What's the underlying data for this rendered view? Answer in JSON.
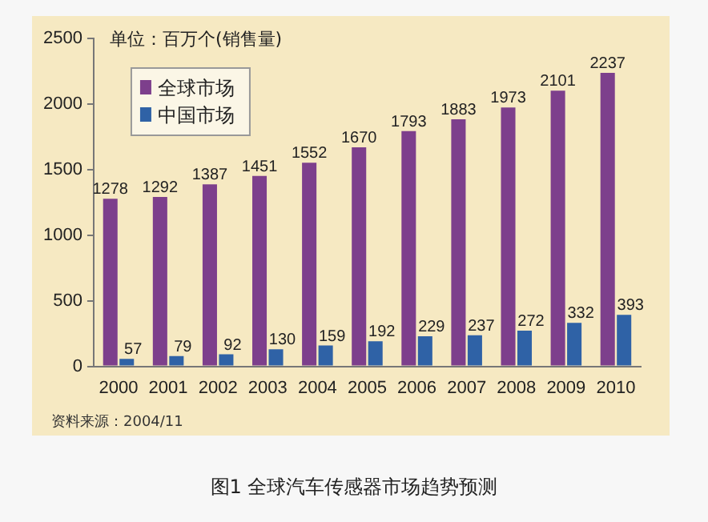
{
  "chart_data": {
    "type": "bar",
    "title": "图1 全球汽车传感器市场趋势预测",
    "subtitle": "单位：百万个(销售量)",
    "categories": [
      "2000",
      "2001",
      "2002",
      "2003",
      "2004",
      "2005",
      "2006",
      "2007",
      "2008",
      "2009",
      "2010"
    ],
    "series": [
      {
        "name": "全球市场",
        "color": "#7d3f8c",
        "values": [
          1278,
          1292,
          1387,
          1451,
          1552,
          1670,
          1793,
          1883,
          1973,
          2101,
          2237
        ]
      },
      {
        "name": "中国市场",
        "color": "#2f62a6",
        "values": [
          57,
          79,
          92,
          130,
          159,
          192,
          229,
          237,
          272,
          332,
          393
        ]
      }
    ],
    "ylim": [
      0,
      2500
    ],
    "yticks": [
      0,
      500,
      1000,
      1500,
      2000,
      2500
    ],
    "grid": false,
    "legend": "top left",
    "data_labels": true,
    "annotations": [
      "资料来源：2004/11"
    ]
  }
}
